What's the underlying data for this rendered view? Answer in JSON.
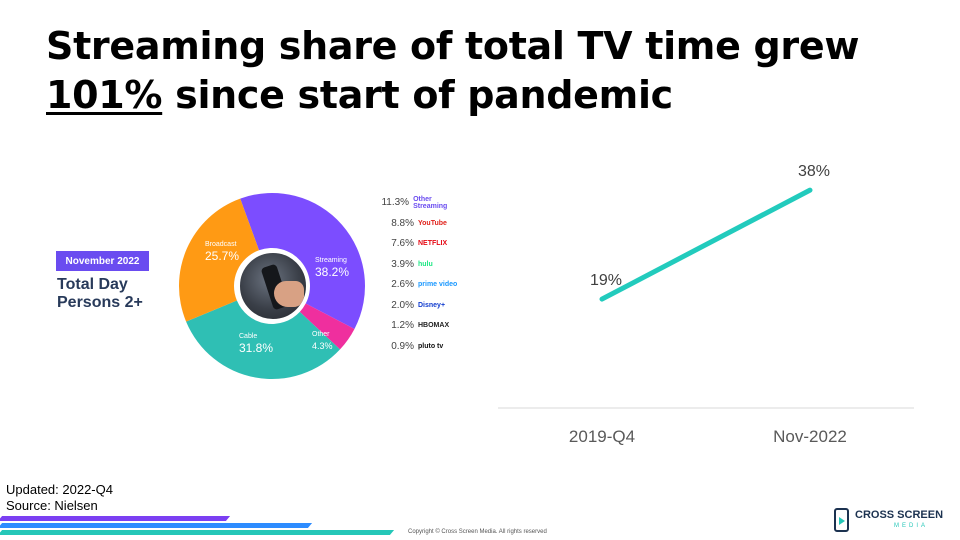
{
  "slide": {
    "title_pre": "Streaming share of total TV time grew",
    "title_highlight": "101%",
    "title_post": " since start of pandemic"
  },
  "infographic": {
    "badge": "November 2022",
    "heading_line1": "Total Day",
    "heading_line2": "Persons 2+",
    "segments": [
      {
        "name": "Streaming",
        "value": "38.2%",
        "share": 38.2,
        "color": "#7c4dff"
      },
      {
        "name": "Other",
        "value": "4.3%",
        "share": 4.3,
        "color": "#ef2f9e"
      },
      {
        "name": "Cable",
        "value": "31.8%",
        "share": 31.8,
        "color": "#2fbfb4"
      },
      {
        "name": "Broadcast",
        "value": "25.7%",
        "share": 25.7,
        "color": "#ff9a14"
      }
    ],
    "services": [
      {
        "pct": "11.3%",
        "name": "Other Streaming",
        "color": "#6a4cf0"
      },
      {
        "pct": "8.8%",
        "name": "YouTube",
        "color": "#e0221b"
      },
      {
        "pct": "7.6%",
        "name": "NETFLIX",
        "color": "#e50914"
      },
      {
        "pct": "3.9%",
        "name": "hulu",
        "color": "#1ce783"
      },
      {
        "pct": "2.6%",
        "name": "prime video",
        "color": "#1a98ff"
      },
      {
        "pct": "2.0%",
        "name": "Disney+",
        "color": "#113ccf"
      },
      {
        "pct": "1.2%",
        "name": "HBOMAX",
        "color": "#222222"
      },
      {
        "pct": "0.9%",
        "name": "pluto tv",
        "color": "#111111"
      }
    ]
  },
  "chart_data": {
    "type": "line",
    "categories": [
      "2019-Q4",
      "Nov-2022"
    ],
    "series": [
      {
        "values": [
          19,
          38
        ],
        "labels": [
          "19%",
          "38%"
        ],
        "color": "#22cbbd"
      }
    ],
    "ylim": [
      0,
      45
    ],
    "grid": false
  },
  "footer": {
    "updated": "Updated: 2022-Q4",
    "source": "Source: Nielsen",
    "copyright": "Copyright © Cross Screen Media. All rights reserved",
    "logo_main": "CROSS SCREEN",
    "logo_sub": "MEDIA"
  },
  "colors": {
    "stripe_purple": "#7b3ff2",
    "stripe_blue": "#2d8cff",
    "stripe_teal": "#25c7b8"
  }
}
